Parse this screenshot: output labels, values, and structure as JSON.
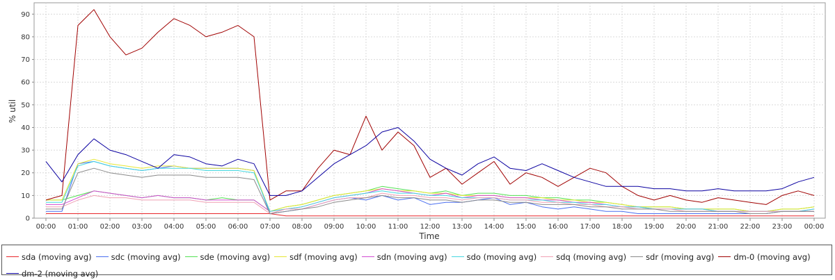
{
  "chart_data": {
    "type": "line",
    "title": "",
    "xlabel": "Time",
    "ylabel": "% util",
    "ylim": [
      0,
      95
    ],
    "xlim": [
      0,
      24
    ],
    "grid": true,
    "legend_position": "bottom",
    "yticks": [
      "0",
      "10",
      "20",
      "30",
      "40",
      "50",
      "60",
      "70",
      "80",
      "90"
    ],
    "xticks": [
      "00:00",
      "01:00",
      "02:00",
      "03:00",
      "04:00",
      "05:00",
      "06:00",
      "07:00",
      "08:00",
      "09:00",
      "10:00",
      "11:00",
      "12:00",
      "13:00",
      "14:00",
      "15:00",
      "16:00",
      "17:00",
      "18:00",
      "19:00",
      "20:00",
      "21:00",
      "22:00",
      "23:00",
      "00:00"
    ],
    "x_hours": [
      0,
      0.5,
      1,
      1.5,
      2,
      2.5,
      3,
      3.5,
      4,
      4.5,
      5,
      5.5,
      6,
      6.5,
      7,
      7.5,
      8,
      8.5,
      9,
      9.5,
      10,
      10.5,
      11,
      11.5,
      12,
      12.5,
      13,
      13.5,
      14,
      14.5,
      15,
      15.5,
      16,
      16.5,
      17,
      17.5,
      18,
      18.5,
      19,
      19.5,
      20,
      20.5,
      21,
      21.5,
      22,
      22.5,
      23,
      23.5,
      24
    ],
    "series": [
      {
        "name": "sda (moving avg)",
        "color": "#e8262b",
        "values": [
          2,
          2,
          2,
          2,
          2,
          2,
          2,
          2,
          2,
          2,
          2,
          2,
          2,
          2,
          2,
          1,
          1,
          1,
          1,
          1,
          1,
          1,
          1,
          1,
          1,
          1,
          1,
          1,
          1,
          1,
          1,
          1,
          1,
          1,
          1,
          1,
          1,
          1,
          1,
          1,
          1,
          1,
          1,
          1,
          1,
          1,
          1,
          1,
          1
        ]
      },
      {
        "name": "sdc (moving avg)",
        "color": "#4a6ff0",
        "values": [
          3,
          3,
          24,
          25,
          23,
          22,
          21,
          22,
          23,
          22,
          22,
          22,
          22,
          21,
          2,
          3,
          4,
          6,
          8,
          9,
          8,
          10,
          8,
          9,
          6,
          7,
          7,
          8,
          9,
          6,
          7,
          5,
          4,
          5,
          4,
          3,
          3,
          2,
          2,
          2,
          2,
          2,
          2,
          2,
          2,
          2,
          3,
          3,
          3
        ]
      },
      {
        "name": "sde (moving avg)",
        "color": "#52e052",
        "values": [
          8,
          8,
          10,
          12,
          11,
          10,
          9,
          10,
          9,
          9,
          8,
          9,
          8,
          8,
          3,
          5,
          6,
          8,
          10,
          11,
          12,
          14,
          13,
          12,
          11,
          12,
          10,
          11,
          11,
          10,
          10,
          9,
          9,
          8,
          8,
          7,
          6,
          5,
          5,
          5,
          4,
          4,
          4,
          4,
          3,
          3,
          4,
          4,
          5
        ]
      },
      {
        "name": "sdf (moving avg)",
        "color": "#e6e632",
        "values": [
          8,
          8,
          24,
          26,
          24,
          23,
          22,
          23,
          23,
          22,
          22,
          22,
          22,
          21,
          3,
          5,
          6,
          8,
          10,
          11,
          12,
          13,
          12,
          12,
          11,
          11,
          10,
          10,
          10,
          9,
          9,
          9,
          8,
          8,
          7,
          7,
          6,
          5,
          5,
          5,
          4,
          4,
          4,
          4,
          3,
          3,
          4,
          4,
          5
        ]
      },
      {
        "name": "sdn (moving avg)",
        "color": "#d24bd2",
        "values": [
          6,
          6,
          9,
          12,
          11,
          10,
          9,
          10,
          9,
          9,
          8,
          8,
          8,
          8,
          3,
          4,
          5,
          7,
          9,
          10,
          11,
          13,
          12,
          11,
          10,
          11,
          9,
          10,
          10,
          9,
          9,
          8,
          8,
          7,
          7,
          6,
          5,
          5,
          4,
          4,
          4,
          4,
          3,
          3,
          3,
          3,
          3,
          3,
          4
        ]
      },
      {
        "name": "sdo (moving avg)",
        "color": "#44d7e0",
        "values": [
          7,
          7,
          23,
          25,
          23,
          22,
          21,
          22,
          22,
          22,
          21,
          21,
          21,
          20,
          3,
          4,
          5,
          7,
          9,
          10,
          11,
          12,
          11,
          11,
          10,
          10,
          9,
          9,
          9,
          8,
          8,
          8,
          7,
          7,
          6,
          6,
          5,
          5,
          4,
          4,
          4,
          4,
          3,
          3,
          3,
          3,
          3,
          3,
          4
        ]
      },
      {
        "name": "sdq (moving avg)",
        "color": "#f0a0b4",
        "values": [
          5,
          5,
          8,
          10,
          9,
          9,
          8,
          8,
          8,
          8,
          7,
          7,
          7,
          7,
          2,
          4,
          4,
          6,
          8,
          9,
          9,
          11,
          10,
          10,
          9,
          9,
          8,
          9,
          9,
          8,
          8,
          7,
          7,
          6,
          6,
          5,
          5,
          4,
          4,
          4,
          3,
          3,
          3,
          3,
          3,
          3,
          3,
          3,
          3
        ]
      },
      {
        "name": "sdr (moving avg)",
        "color": "#8a8a8a",
        "values": [
          4,
          4,
          20,
          22,
          20,
          19,
          18,
          19,
          19,
          19,
          18,
          18,
          18,
          17,
          2,
          3,
          4,
          5,
          7,
          8,
          9,
          10,
          9,
          9,
          8,
          8,
          7,
          8,
          8,
          7,
          7,
          6,
          6,
          6,
          5,
          5,
          4,
          4,
          4,
          3,
          3,
          3,
          3,
          3,
          2,
          2,
          3,
          3,
          3
        ]
      },
      {
        "name": "dm-0 (moving avg)",
        "color": "#a00000",
        "values": [
          8,
          10,
          85,
          92,
          80,
          72,
          75,
          82,
          88,
          85,
          80,
          82,
          85,
          80,
          8,
          12,
          12,
          22,
          30,
          28,
          45,
          30,
          38,
          32,
          18,
          22,
          15,
          20,
          25,
          15,
          20,
          18,
          14,
          18,
          22,
          20,
          14,
          10,
          8,
          10,
          8,
          7,
          9,
          8,
          7,
          6,
          10,
          12,
          10
        ]
      },
      {
        "name": "dm-2 (moving avg)",
        "color": "#0a00a0",
        "values": [
          25,
          16,
          28,
          35,
          30,
          28,
          25,
          22,
          28,
          27,
          24,
          23,
          26,
          24,
          10,
          10,
          12,
          18,
          24,
          28,
          32,
          38,
          40,
          34,
          26,
          22,
          19,
          24,
          27,
          22,
          21,
          24,
          21,
          18,
          16,
          14,
          14,
          14,
          13,
          13,
          12,
          12,
          13,
          12,
          12,
          12,
          13,
          16,
          18
        ]
      }
    ]
  }
}
